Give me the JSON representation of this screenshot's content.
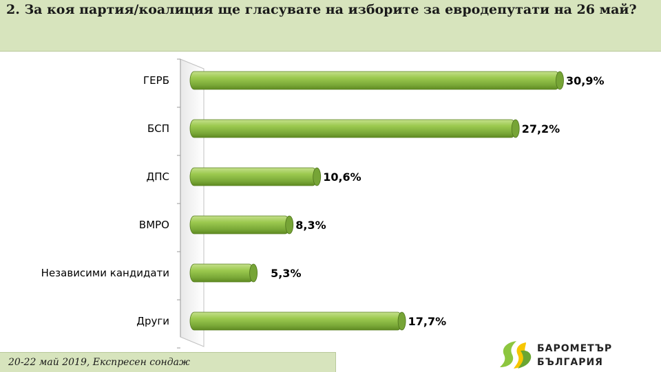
{
  "header": {
    "title": "2. За коя партия/коалиция ще гласувате на изборите за евродепутати на 26 май?"
  },
  "chart_data": {
    "type": "bar",
    "orientation": "horizontal",
    "categories": [
      "ГЕРБ",
      "БСП",
      "ДПС",
      "ВМРО",
      "Независими кандидати",
      "Други"
    ],
    "values": [
      30.9,
      27.2,
      10.6,
      8.3,
      5.3,
      17.7
    ],
    "value_labels": [
      "30,9%",
      "27,2%",
      "10,6%",
      "8,3%",
      "5,3%",
      "17,7%"
    ],
    "unit": "%",
    "xlim": [
      0,
      32
    ],
    "grid": false,
    "legend": "none",
    "colors": {
      "bar": "#92c047",
      "bar_light": "#c5e08c",
      "bar_dark": "#5f8a22",
      "bar_end": "#76a436"
    }
  },
  "footer": {
    "text": "20-22 май 2019, Експресен сондаж"
  },
  "logo": {
    "line1": "БАРОМЕТЪР",
    "line2": "БЪЛГАРИЯ",
    "colors": {
      "green": "#8dc63f",
      "yellow": "#f7c600"
    }
  }
}
